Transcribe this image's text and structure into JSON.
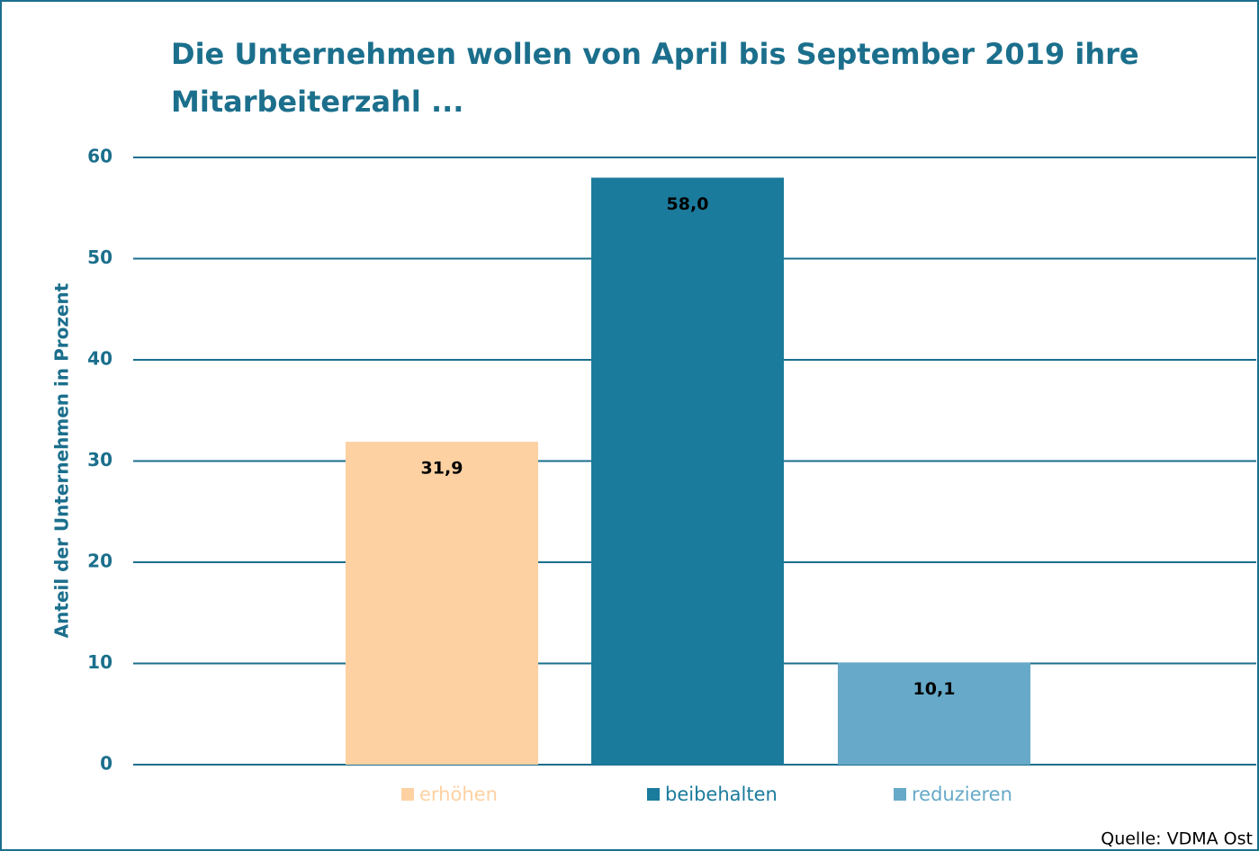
{
  "chart_data": {
    "type": "bar",
    "title": [
      "Die Unternehmen wollen von April bis September 2019 ihre",
      "Mitarbeiterzahl ..."
    ],
    "y_label": "Anteil der Unternehmen in Prozent",
    "source": "Quelle: VDMA Ost",
    "series": [
      {
        "name": "erhöhen",
        "color": "#fdd1a2",
        "values": [
          31.9
        ],
        "value_labels": [
          "31,9"
        ]
      },
      {
        "name": "beibehalten",
        "color": "#1b7b9c",
        "values": [
          58.0
        ],
        "value_labels": [
          "58,0"
        ]
      },
      {
        "name": "reduzieren",
        "color": "#66a9c8",
        "values": [
          10.1
        ],
        "value_labels": [
          "10,1"
        ]
      }
    ],
    "ylim": [
      0,
      60
    ],
    "yticks": [
      0,
      10,
      20,
      30,
      40,
      50,
      60
    ],
    "grid": true,
    "legend": "bottom"
  }
}
